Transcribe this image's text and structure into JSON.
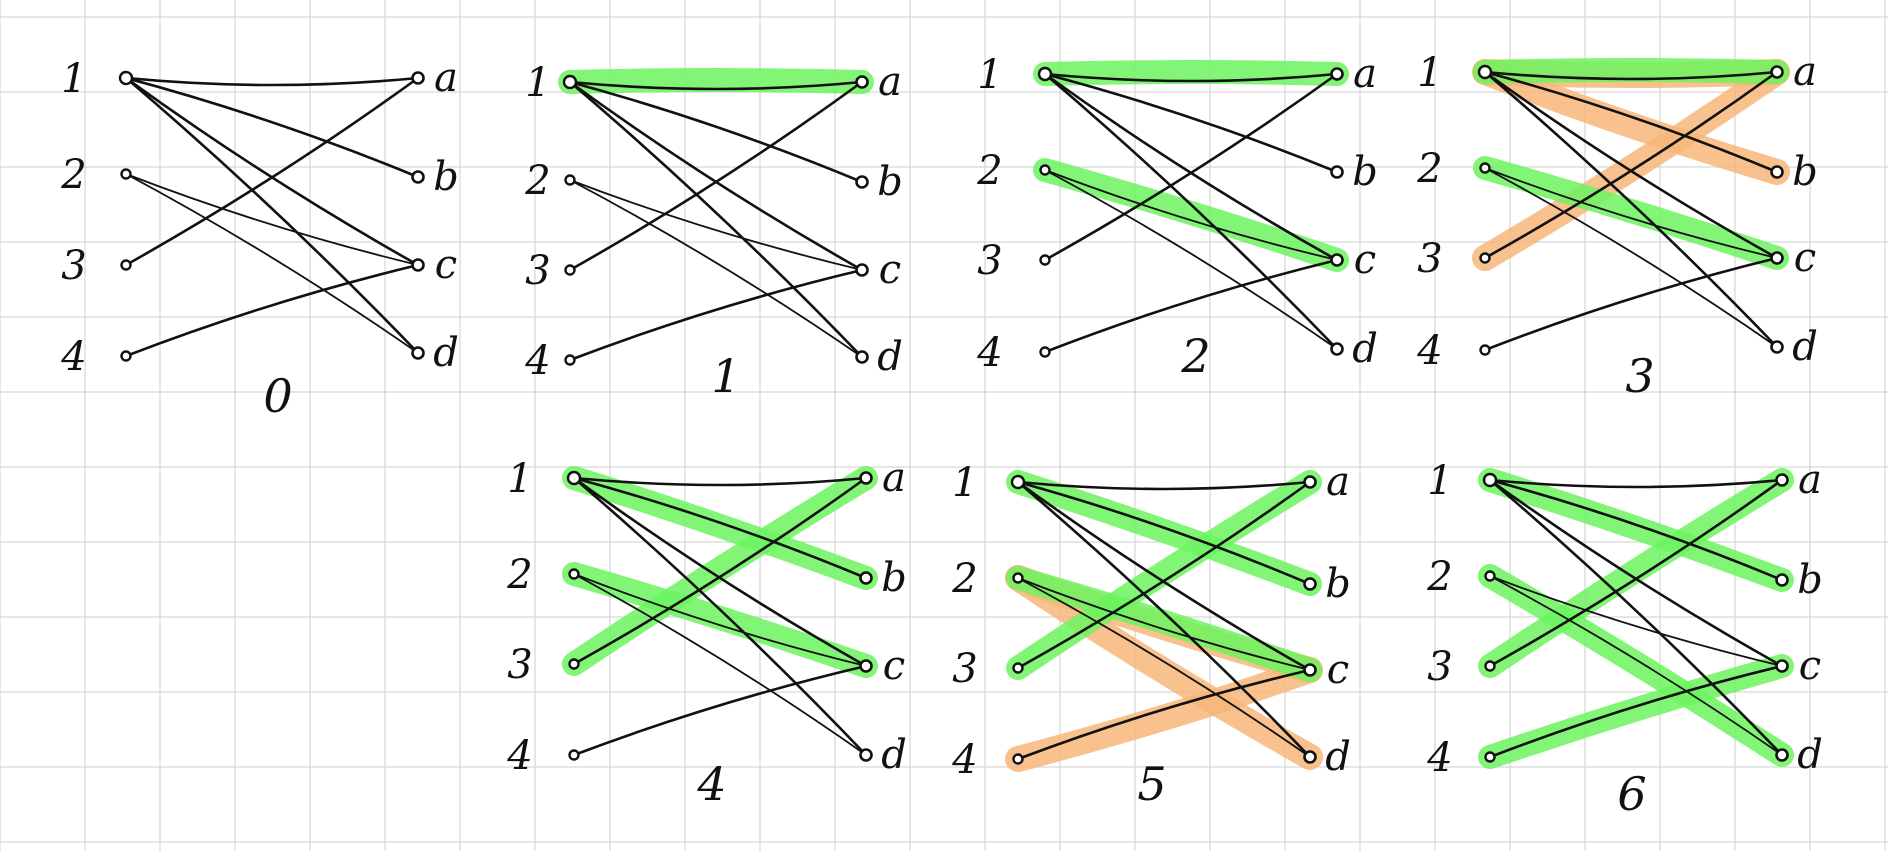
{
  "colors": {
    "background": "#ffffff",
    "grid": "#d6d6d6",
    "ink": "#111111",
    "matched": "#6cf35f",
    "augmenting": "#f7b679"
  },
  "left_labels": [
    "1",
    "2",
    "3",
    "4"
  ],
  "right_labels": [
    "a",
    "b",
    "c",
    "d"
  ],
  "edges": [
    {
      "from": "1",
      "to": "a"
    },
    {
      "from": "1",
      "to": "b"
    },
    {
      "from": "1",
      "to": "c"
    },
    {
      "from": "1",
      "to": "d"
    },
    {
      "from": "2",
      "to": "c"
    },
    {
      "from": "2",
      "to": "d"
    },
    {
      "from": "3",
      "to": "a"
    },
    {
      "from": "4",
      "to": "c"
    }
  ],
  "steps": [
    {
      "label": "0",
      "matched": [],
      "augmenting": []
    },
    {
      "label": "1",
      "matched": [
        [
          "1",
          "a"
        ]
      ],
      "augmenting": []
    },
    {
      "label": "2",
      "matched": [
        [
          "1",
          "a"
        ],
        [
          "2",
          "c"
        ]
      ],
      "augmenting": []
    },
    {
      "label": "3",
      "matched": [
        [
          "1",
          "a"
        ],
        [
          "2",
          "c"
        ]
      ],
      "augmenting": [
        [
          "3",
          "a"
        ],
        [
          "1",
          "a"
        ],
        [
          "1",
          "b"
        ]
      ]
    },
    {
      "label": "4",
      "matched": [
        [
          "3",
          "a"
        ],
        [
          "1",
          "b"
        ],
        [
          "2",
          "c"
        ]
      ],
      "augmenting": []
    },
    {
      "label": "5",
      "matched": [
        [
          "3",
          "a"
        ],
        [
          "1",
          "b"
        ],
        [
          "2",
          "c"
        ]
      ],
      "augmenting": [
        [
          "4",
          "c"
        ],
        [
          "2",
          "c"
        ],
        [
          "2",
          "d"
        ]
      ]
    },
    {
      "label": "6",
      "matched": [
        [
          "3",
          "a"
        ],
        [
          "1",
          "b"
        ],
        [
          "4",
          "c"
        ],
        [
          "2",
          "d"
        ]
      ],
      "augmenting": []
    }
  ]
}
